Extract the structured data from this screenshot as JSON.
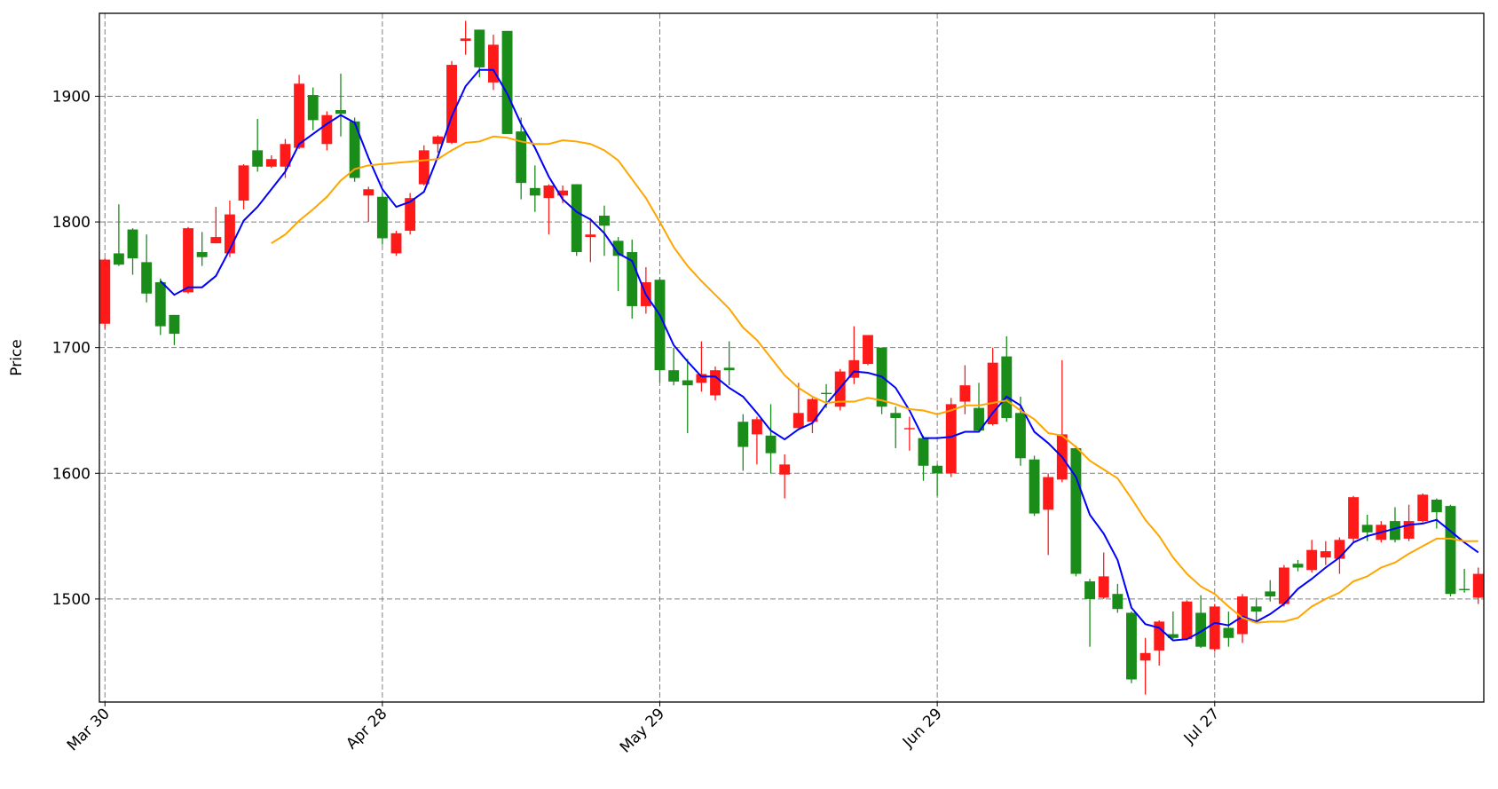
{
  "chart_data": {
    "type": "candlestick",
    "ylabel": "Price",
    "categories": [
      "Mar 30",
      null,
      null,
      null,
      null,
      null,
      null,
      null,
      null,
      null,
      null,
      null,
      null,
      null,
      null,
      null,
      null,
      null,
      null,
      null,
      "Apr 28",
      null,
      null,
      null,
      null,
      null,
      null,
      null,
      null,
      null,
      null,
      null,
      null,
      null,
      null,
      null,
      null,
      null,
      null,
      null,
      "May 29",
      null,
      null,
      null,
      null,
      null,
      null,
      null,
      null,
      null,
      null,
      null,
      null,
      null,
      null,
      null,
      null,
      null,
      null,
      null,
      "Jun 29",
      null,
      null,
      null,
      null,
      null,
      null,
      null,
      null,
      null,
      null,
      null,
      null,
      null,
      null,
      null,
      null,
      null,
      null,
      null,
      "Jul 27",
      null,
      null,
      null,
      null,
      null,
      null,
      null,
      null,
      null,
      null,
      null,
      null,
      null,
      null,
      null,
      null,
      null,
      null,
      null
    ],
    "open": [
      1719,
      1775,
      1794,
      1768,
      1752,
      1726,
      1744,
      1776,
      1783,
      1775,
      1817,
      1857,
      1844,
      1844,
      1859,
      1901,
      1862,
      1889,
      1880,
      1821,
      1820,
      1775,
      1793,
      1830,
      1862,
      1863,
      1944,
      1953,
      1911,
      1952,
      1872,
      1827,
      1819,
      1821,
      1830,
      1788,
      1805,
      1785,
      1776,
      1733,
      1754,
      1682,
      1674,
      1672,
      1662,
      1684,
      1641,
      1631,
      1630,
      1599,
      1636,
      1641,
      1664,
      1653,
      1676,
      1687,
      1700,
      1648,
      1635,
      1628,
      1606,
      1600,
      1657,
      1652,
      1639,
      1693,
      1648,
      1611,
      1571,
      1595,
      1620,
      1514,
      1501,
      1504,
      1489,
      1451,
      1459,
      1472,
      1468,
      1489,
      1460,
      1477,
      1472,
      1494,
      1506,
      1496,
      1528,
      1523,
      1533,
      1532,
      1548,
      1559,
      1547,
      1562,
      1548,
      1562,
      1579,
      1574,
      1508,
      1501
    ],
    "high": [
      1771,
      1814,
      1795,
      1790,
      1755,
      1726,
      1796,
      1792,
      1812,
      1817,
      1846,
      1882,
      1853,
      1866,
      1917,
      1907,
      1888,
      1918,
      1883,
      1828,
      1823,
      1793,
      1823,
      1861,
      1869,
      1928,
      1960,
      1953,
      1949,
      1952,
      1883,
      1845,
      1830,
      1829,
      1830,
      1803,
      1813,
      1788,
      1786,
      1764,
      1756,
      1700,
      1691,
      1705,
      1685,
      1705,
      1647,
      1645,
      1655,
      1615,
      1672,
      1660,
      1671,
      1683,
      1717,
      1710,
      1700,
      1653,
      1645,
      1630,
      1607,
      1660,
      1686,
      1672,
      1700,
      1709,
      1661,
      1614,
      1600,
      1690,
      1622,
      1516,
      1537,
      1512,
      1490,
      1469,
      1483,
      1490,
      1499,
      1503,
      1496,
      1490,
      1504,
      1501,
      1515,
      1527,
      1531,
      1547,
      1546,
      1549,
      1582,
      1567,
      1562,
      1573,
      1575,
      1584,
      1580,
      1575,
      1524,
      1525
    ],
    "low": [
      1715,
      1765,
      1758,
      1736,
      1710,
      1702,
      1743,
      1765,
      1783,
      1772,
      1810,
      1840,
      1843,
      1835,
      1858,
      1873,
      1857,
      1868,
      1832,
      1800,
      1782,
      1773,
      1790,
      1829,
      1855,
      1862,
      1933,
      1915,
      1905,
      1870,
      1818,
      1808,
      1790,
      1815,
      1773,
      1768,
      1773,
      1745,
      1723,
      1727,
      1672,
      1670,
      1632,
      1665,
      1658,
      1670,
      1602,
      1607,
      1600,
      1580,
      1636,
      1632,
      1652,
      1650,
      1671,
      1686,
      1647,
      1620,
      1618,
      1594,
      1582,
      1597,
      1647,
      1634,
      1638,
      1641,
      1606,
      1566,
      1535,
      1593,
      1518,
      1462,
      1500,
      1489,
      1433,
      1424,
      1447,
      1468,
      1467,
      1461,
      1458,
      1462,
      1465,
      1482,
      1498,
      1494,
      1522,
      1521,
      1527,
      1520,
      1545,
      1546,
      1545,
      1545,
      1546,
      1561,
      1556,
      1502,
      1505,
      1496
    ],
    "close": [
      1770,
      1766,
      1771,
      1743,
      1717,
      1711,
      1795,
      1772,
      1788,
      1806,
      1845,
      1844,
      1850,
      1862,
      1910,
      1881,
      1885,
      1886,
      1835,
      1826,
      1787,
      1791,
      1819,
      1857,
      1868,
      1925,
      1946,
      1923,
      1941,
      1870,
      1831,
      1821,
      1829,
      1825,
      1776,
      1790,
      1797,
      1773,
      1733,
      1752,
      1682,
      1673,
      1670,
      1679,
      1682,
      1682,
      1621,
      1643,
      1616,
      1607,
      1648,
      1659,
      1663,
      1681,
      1690,
      1710,
      1653,
      1644,
      1636,
      1606,
      1600,
      1655,
      1670,
      1634,
      1688,
      1644,
      1612,
      1568,
      1597,
      1631,
      1520,
      1500,
      1518,
      1492,
      1436,
      1457,
      1482,
      1469,
      1498,
      1462,
      1494,
      1469,
      1502,
      1490,
      1502,
      1525,
      1525,
      1539,
      1538,
      1547,
      1581,
      1553,
      1559,
      1547,
      1562,
      1583,
      1569,
      1504,
      1507,
      1520
    ],
    "up_color": "#ff1a1a",
    "down_color": "#1a8c1a",
    "series": [
      {
        "color": "#0000ff",
        "values": [
          null,
          null,
          null,
          null,
          1753,
          1742,
          1748,
          1748,
          1757,
          1778,
          1801,
          1812,
          1826,
          1840,
          1862,
          1870,
          1878,
          1885,
          1879,
          1851,
          1826,
          1812,
          1816,
          1824,
          1852,
          1884,
          1908,
          1921,
          1921,
          1902,
          1878,
          1859,
          1836,
          1818,
          1808,
          1802,
          1791,
          1775,
          1769,
          1742,
          1726,
          1702,
          1689,
          1677,
          1677,
          1668,
          1661,
          1648,
          1634,
          1627,
          1635,
          1640,
          1655,
          1668,
          1681,
          1680,
          1677,
          1668,
          1650,
          1628,
          1628,
          1629,
          1633,
          1633,
          1648,
          1661,
          1654,
          1633,
          1624,
          1613,
          1597,
          1567,
          1552,
          1531,
          1493,
          1480,
          1477,
          1467,
          1468,
          1474,
          1481,
          1479,
          1486,
          1482,
          1488,
          1496,
          1508,
          1516,
          1525,
          1533,
          1545,
          1550,
          1553,
          1556,
          1559,
          1560,
          1563,
          1554,
          1545,
          1537
        ]
      },
      {
        "color": "#ffa500",
        "values": [
          null,
          null,
          null,
          null,
          null,
          null,
          null,
          null,
          null,
          null,
          null,
          null,
          1783,
          1790,
          1801,
          1810,
          1820,
          1833,
          1842,
          1845,
          1846,
          1847,
          1848,
          1849,
          1850,
          1857,
          1863,
          1864,
          1868,
          1867,
          1864,
          1862,
          1862,
          1865,
          1864,
          1862,
          1857,
          1849,
          1834,
          1819,
          1800,
          1780,
          1765,
          1753,
          1742,
          1731,
          1716,
          1706,
          1692,
          1678,
          1668,
          1661,
          1656,
          1657,
          1657,
          1660,
          1658,
          1655,
          1651,
          1650,
          1647,
          1650,
          1654,
          1654,
          1656,
          1658,
          1650,
          1643,
          1632,
          1630,
          1621,
          1610,
          1603,
          1596,
          1580,
          1563,
          1550,
          1533,
          1520,
          1510,
          1504,
          1494,
          1485,
          1481,
          1482,
          1482,
          1485,
          1494,
          1500,
          1505,
          1514,
          1518,
          1525,
          1529,
          1536,
          1542,
          1548,
          1548,
          1546,
          1546
        ]
      }
    ],
    "xlim": [
      -0.4,
      99.4
    ],
    "ylim": [
      1418,
      1966
    ],
    "yticks": [
      1500,
      1600,
      1700,
      1800,
      1900
    ],
    "grid": true
  }
}
